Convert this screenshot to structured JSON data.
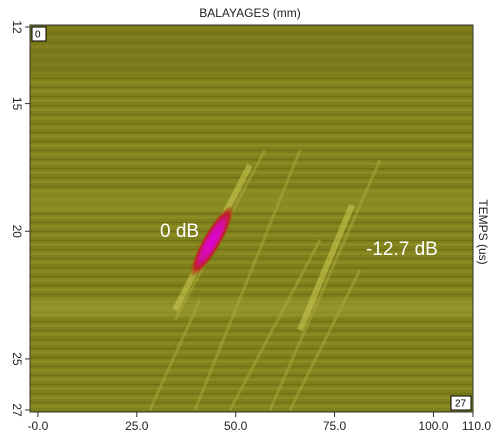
{
  "chart_data": {
    "type": "image",
    "title": "BALAYAGES (mm)",
    "y_label": "TEMPS (us)",
    "xlim": [
      -2,
      110
    ],
    "xticks": [
      {
        "value": 0,
        "label": "-0.0"
      },
      {
        "value": 25,
        "label": "25.0"
      },
      {
        "value": 50,
        "label": "50.0"
      },
      {
        "value": 75,
        "label": "75.0"
      },
      {
        "value": 100,
        "label": "100.0"
      },
      {
        "value": 110,
        "label": "110.0"
      }
    ],
    "ylim": [
      12,
      27
    ],
    "yticks": [
      12,
      15,
      20,
      25,
      27
    ],
    "corner_labels": [
      "0",
      "27"
    ],
    "annotations": [
      "0 dB",
      "-12.7 dB"
    ]
  }
}
